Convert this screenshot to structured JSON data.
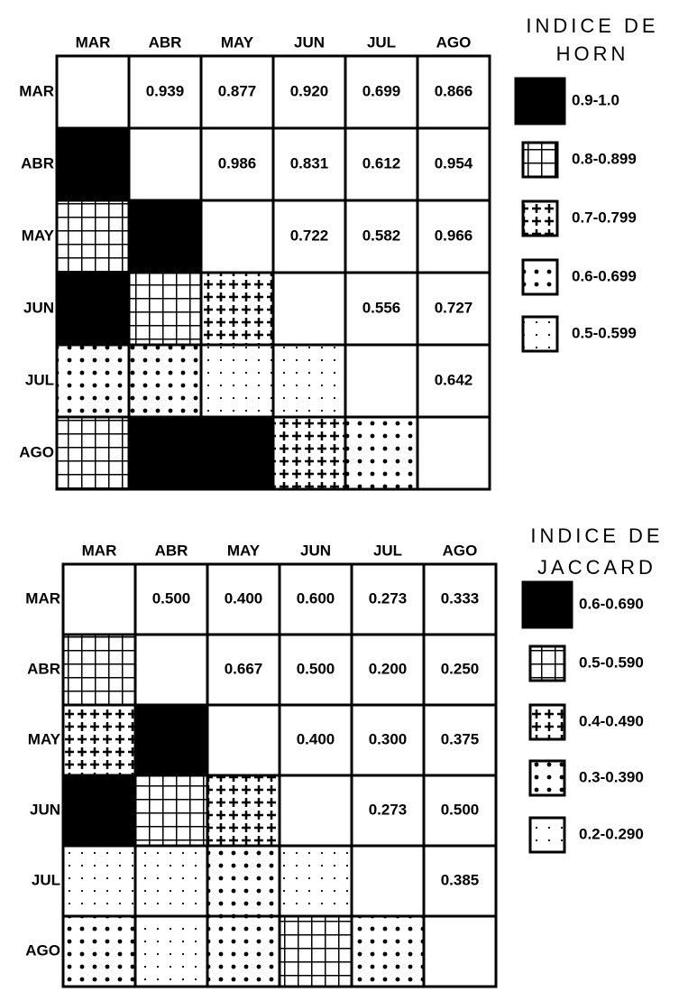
{
  "matrices": [
    {
      "title": [
        "INDICE DE",
        "HORN"
      ],
      "months": [
        "MAR",
        "ABR",
        "MAY",
        "JUN",
        "JUL",
        "AGO"
      ],
      "rows": [
        [
          "0.939",
          "0.877",
          "0.920",
          "0.699",
          "0.866"
        ],
        [
          "0.986",
          "0.831",
          "0.612",
          "0.954"
        ],
        [
          "0.722",
          "0.582",
          "0.966"
        ],
        [
          "0.556",
          "0.727"
        ],
        [
          "0.642"
        ],
        []
      ],
      "legend": [
        "0.9-1.0",
        "0.8-0.899",
        "0.7-0.799",
        "0.6-0.699",
        "0.5-0.599"
      ]
    },
    {
      "title": [
        "INDICE DE",
        "JACCARD"
      ],
      "months": [
        "MAR",
        "ABR",
        "MAY",
        "JUN",
        "JUL",
        "AGO"
      ],
      "rows": [
        [
          "0.500",
          "0.400",
          "0.600",
          "0.273",
          "0.333"
        ],
        [
          "0.667",
          "0.500",
          "0.200",
          "0.250"
        ],
        [
          "0.400",
          "0.300",
          "0.375"
        ],
        [
          "0.273",
          "0.500"
        ],
        [
          "0.385"
        ],
        []
      ],
      "legend": [
        "0.6-0.690",
        "0.5-0.590",
        "0.4-0.490",
        "0.3-0.390",
        "0.2-0.290"
      ]
    }
  ]
}
